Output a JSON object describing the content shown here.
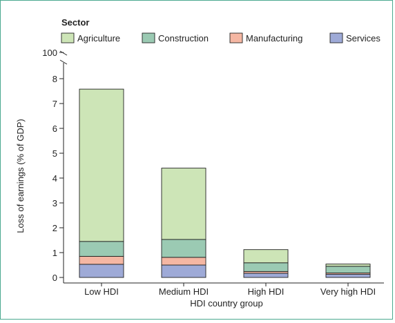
{
  "chart_data": {
    "type": "bar",
    "stacked": true,
    "legend_title": "Sector",
    "legend_position": "top",
    "categories": [
      "Low HDI",
      "Medium HDI",
      "High HDI",
      "Very high HDI"
    ],
    "series": [
      {
        "name": "Services",
        "color": "#9eaad7",
        "values": [
          0.53,
          0.5,
          0.17,
          0.13
        ]
      },
      {
        "name": "Manufacturing",
        "color": "#f5b7a3",
        "values": [
          0.32,
          0.31,
          0.07,
          0.05
        ]
      },
      {
        "name": "Construction",
        "color": "#9bcab3",
        "values": [
          0.6,
          0.72,
          0.35,
          0.27
        ]
      },
      {
        "name": "Agriculture",
        "color": "#cde5b7",
        "values": [
          6.13,
          2.87,
          0.53,
          0.09
        ]
      }
    ],
    "legend_order": [
      "Agriculture",
      "Construction",
      "Manufacturing",
      "Services"
    ],
    "xlabel": "HDI country group",
    "ylabel": "Loss of earnings (% of GDP)",
    "ylim": [
      0,
      8
    ],
    "yticks": [
      "0",
      "1",
      "2",
      "3",
      "4",
      "5",
      "6",
      "7",
      "8"
    ],
    "y_break_label": "100",
    "grid": false
  },
  "colors": {
    "border": "#4aa98f",
    "axis": "#222222"
  }
}
